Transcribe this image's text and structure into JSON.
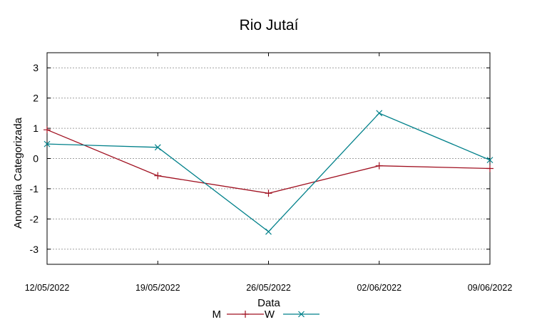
{
  "chart_data": {
    "type": "line",
    "title": "Rio Jutaí",
    "xlabel": "Data",
    "ylabel": "Anomalia Categorizada",
    "x": [
      "12/05/2022",
      "19/05/2022",
      "26/05/2022",
      "02/06/2022",
      "09/06/2022"
    ],
    "yticks": [
      3,
      2,
      1,
      0,
      -1,
      -2,
      -3
    ],
    "ytick_labels": [
      "3",
      "2",
      "1",
      "0",
      "-1",
      "-2",
      "-3"
    ],
    "ylim": [
      -3.5,
      3.5
    ],
    "grid": true,
    "legend_position": "bottom-center",
    "series": [
      {
        "name": "M",
        "color": "#a01020",
        "marker": "plus",
        "values": [
          0.95,
          -0.57,
          -1.15,
          -0.24,
          -0.33
        ]
      },
      {
        "name": "W",
        "color": "#00808a",
        "marker": "cross",
        "values": [
          0.48,
          0.37,
          -2.42,
          1.5,
          -0.05
        ]
      }
    ]
  }
}
